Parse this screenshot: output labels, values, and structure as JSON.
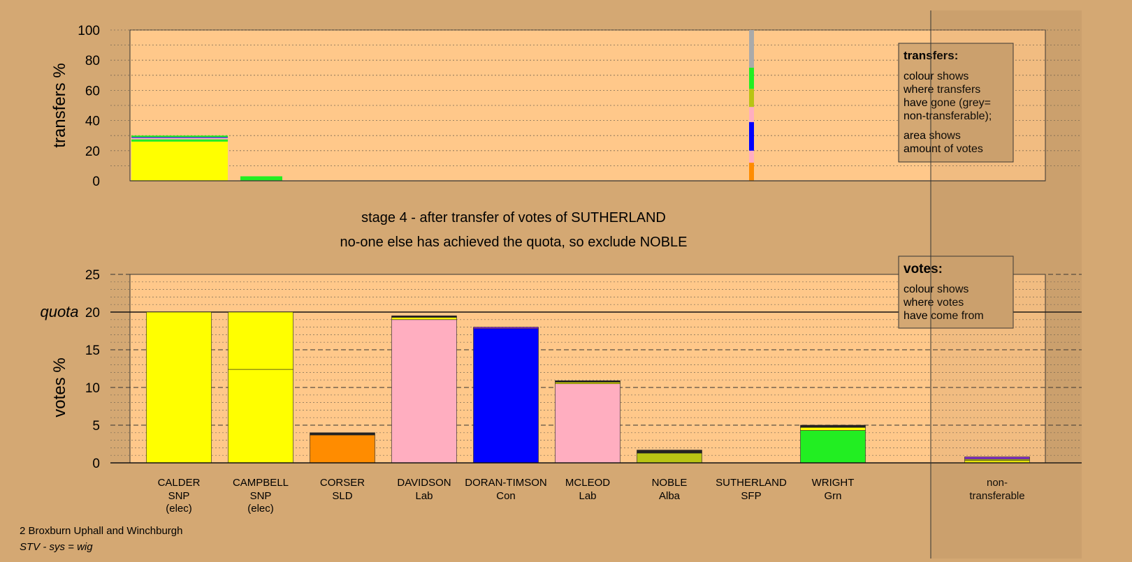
{
  "stage_title": "stage 4 - after transfer of votes of SUTHERLAND",
  "stage_subtitle": "no-one else has achieved the quota, so exclude NOBLE",
  "footer": {
    "ward": "2 Broxburn Uphall and Winchburgh",
    "system": "STV - sys = wig"
  },
  "transfers_legend": {
    "title": "transfers:",
    "lines1": [
      "colour shows",
      "where transfers",
      "have gone (grey=",
      "non-transferable);"
    ],
    "lines2": [
      "area shows",
      "amount of votes"
    ]
  },
  "votes_legend": {
    "title": "votes:",
    "lines": [
      "colour shows",
      "where votes",
      "have come from"
    ]
  },
  "colors": {
    "background": "#d4a873",
    "plot_bg": "#ffc88a",
    "SNP": "#ffff00",
    "SLD": "#ff8c00",
    "Lab": "#ffaec0",
    "Con": "#0000ff",
    "Alba": "#b8c414",
    "Grn": "#22ee22",
    "SFP": "#444444",
    "nontransferable": "#aaaaaa",
    "dark": "#222222",
    "purple": "#8a2be2"
  },
  "chart_data": [
    {
      "type": "bar",
      "name": "transfers",
      "ylabel": "transfers %",
      "ylim": [
        0,
        100
      ],
      "yticks": [
        0,
        20,
        40,
        60,
        80,
        100
      ],
      "grid": true,
      "bars": [
        {
          "candidate": "CALDER",
          "width_votes": 20.0,
          "segments": [
            {
              "party": "SNP",
              "value": 26
            },
            {
              "party": "Grn",
              "value": 1.5
            },
            {
              "party": "Lab",
              "value": 1
            },
            {
              "party": "Con",
              "value": 0.5
            },
            {
              "party": "Grn",
              "value": 1
            }
          ]
        },
        {
          "candidate": "CAMPBELL",
          "width_votes": 8.0,
          "segments": [
            {
              "party": "Grn",
              "value": 3
            }
          ]
        },
        {
          "candidate": "SUTHERLAND",
          "width_votes": 0.5,
          "segments": [
            {
              "party": "SLD",
              "value": 12
            },
            {
              "party": "Lab",
              "value": 8
            },
            {
              "party": "Con",
              "value": 19
            },
            {
              "party": "Lab",
              "value": 10
            },
            {
              "party": "Alba",
              "value": 12
            },
            {
              "party": "Grn",
              "value": 14
            },
            {
              "party": "nontransferable",
              "value": 25
            }
          ]
        }
      ]
    },
    {
      "type": "bar",
      "name": "votes",
      "ylabel": "votes %",
      "ylim": [
        0,
        25
      ],
      "yticks": [
        0,
        5,
        10,
        15,
        20,
        25
      ],
      "quota": 20,
      "quota_label": "quota",
      "grid": true,
      "bars": [
        {
          "name": "CALDER",
          "party": "SNP",
          "note": "(elec)",
          "segments": [
            {
              "party": "SNP",
              "value": 20.0
            }
          ]
        },
        {
          "name": "CAMPBELL",
          "party": "SNP",
          "note": "(elec)",
          "segments": [
            {
              "party": "SNP",
              "value": 12.4
            },
            {
              "party": "SNP",
              "value": 7.6
            }
          ]
        },
        {
          "name": "CORSER",
          "party": "SLD",
          "note": "",
          "segments": [
            {
              "party": "SLD",
              "value": 3.7
            },
            {
              "party": "dark",
              "value": 0.3
            }
          ]
        },
        {
          "name": "DAVIDSON",
          "party": "Lab",
          "note": "",
          "segments": [
            {
              "party": "Lab",
              "value": 19.0
            },
            {
              "party": "SNP",
              "value": 0.3
            },
            {
              "party": "dark",
              "value": 0.2
            }
          ]
        },
        {
          "name": "DORAN-TIMSON",
          "party": "Con",
          "note": "",
          "segments": [
            {
              "party": "Con",
              "value": 17.8
            },
            {
              "party": "purple",
              "value": 0.2
            }
          ]
        },
        {
          "name": "MCLEOD",
          "party": "Lab",
          "note": "",
          "segments": [
            {
              "party": "Lab",
              "value": 10.5
            },
            {
              "party": "SNP",
              "value": 0.2
            },
            {
              "party": "dark",
              "value": 0.2
            }
          ]
        },
        {
          "name": "NOBLE",
          "party": "Alba",
          "note": "",
          "segments": [
            {
              "party": "Alba",
              "value": 1.3
            },
            {
              "party": "dark",
              "value": 0.4
            }
          ]
        },
        {
          "name": "SUTHERLAND",
          "party": "SFP",
          "note": "",
          "segments": []
        },
        {
          "name": "WRIGHT",
          "party": "Grn",
          "note": "",
          "segments": [
            {
              "party": "Grn",
              "value": 4.3
            },
            {
              "party": "SNP",
              "value": 0.4
            },
            {
              "party": "dark",
              "value": 0.3
            }
          ]
        },
        {
          "name": "non-",
          "party": "transferable",
          "note": "",
          "segments": [
            {
              "party": "SNP",
              "value": 0.3
            },
            {
              "party": "Alba",
              "value": 0.2
            },
            {
              "party": "purple",
              "value": 0.3
            }
          ]
        }
      ]
    }
  ]
}
